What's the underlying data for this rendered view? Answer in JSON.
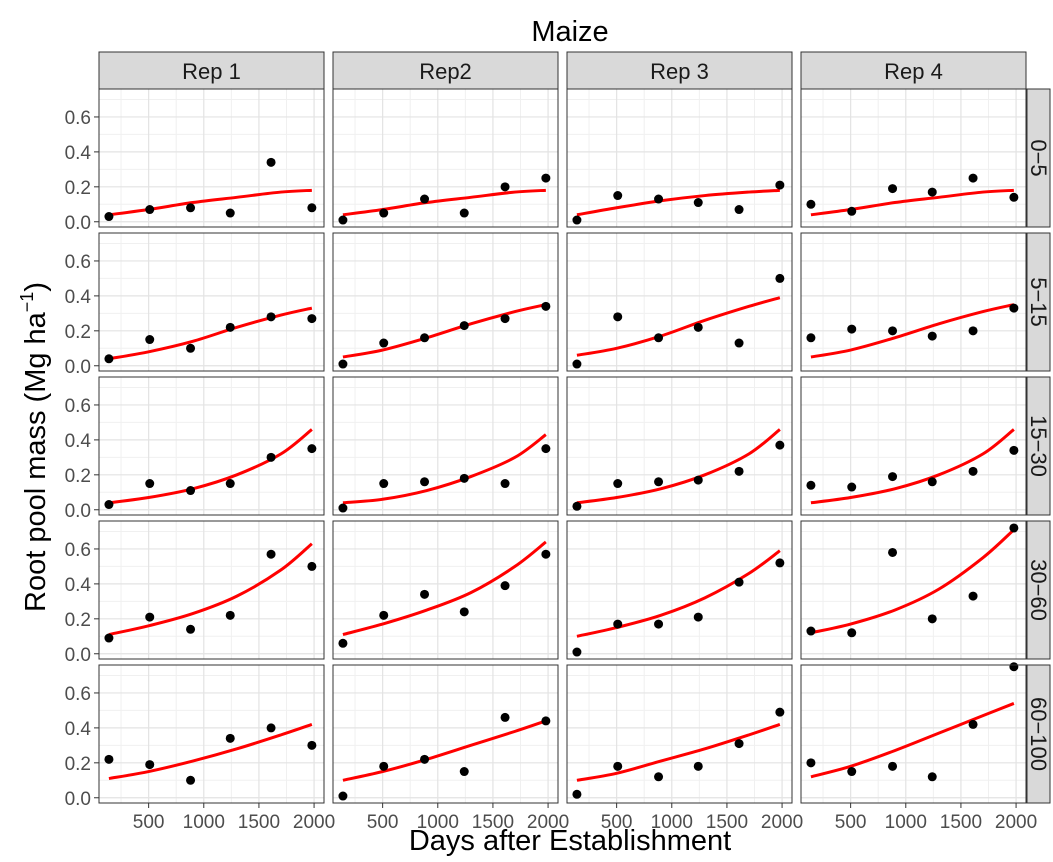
{
  "chart_data": {
    "type": "scatter",
    "title": "Maize",
    "xlabel": "Days after Establishment",
    "ylabel_main": "Root pool mass (Mg ha",
    "ylabel_sup": "−1",
    "ylabel_close": ")",
    "columns": [
      "Rep 1",
      "Rep2",
      "Rep 3",
      "Rep 4"
    ],
    "rows": [
      "0−5",
      "5−15",
      "15−30",
      "30−60",
      "60−100"
    ],
    "x_ticks": [
      500,
      1000,
      1500,
      2000
    ],
    "x_tick_labels": [
      "500",
      "1000",
      "1500",
      "2000"
    ],
    "xlim": [
      50,
      2090
    ],
    "y_ticks": [
      0.0,
      0.2,
      0.4,
      0.6
    ],
    "y_tick_labels": [
      "0.0",
      "0.2",
      "0.4",
      "0.6"
    ],
    "ylim": [
      -0.03,
      0.76
    ],
    "grid": true,
    "point_color": "#000000",
    "line_color": "#ff0000",
    "strip_color": "#d9d9d9",
    "x_days": [
      140,
      510,
      880,
      1240,
      1610,
      1980
    ],
    "points": [
      [
        [
          0.03,
          0.07,
          0.08,
          0.05,
          0.34,
          0.08
        ],
        [
          0.01,
          0.05,
          0.13,
          0.05,
          0.2,
          0.25
        ],
        [
          0.01,
          0.15,
          0.13,
          0.11,
          0.07,
          0.21
        ],
        [
          0.1,
          0.06,
          0.19,
          0.17,
          0.25,
          0.14
        ]
      ],
      [
        [
          0.04,
          0.15,
          0.1,
          0.22,
          0.28,
          0.27
        ],
        [
          0.01,
          0.13,
          0.16,
          0.23,
          0.27,
          0.34
        ],
        [
          0.01,
          0.28,
          0.16,
          0.22,
          0.13,
          0.5
        ],
        [
          0.16,
          0.21,
          0.2,
          0.17,
          0.2,
          0.33
        ]
      ],
      [
        [
          0.03,
          0.15,
          0.11,
          0.15,
          0.3,
          0.35
        ],
        [
          0.01,
          0.15,
          0.16,
          0.18,
          0.15,
          0.35
        ],
        [
          0.02,
          0.15,
          0.16,
          0.17,
          0.22,
          0.37
        ],
        [
          0.14,
          0.13,
          0.19,
          0.16,
          0.22,
          0.34
        ]
      ],
      [
        [
          0.09,
          0.21,
          0.14,
          0.22,
          0.57,
          0.5
        ],
        [
          0.06,
          0.22,
          0.34,
          0.24,
          0.39,
          0.57
        ],
        [
          0.01,
          0.17,
          0.17,
          0.21,
          0.41,
          0.52
        ],
        [
          0.13,
          0.12,
          0.58,
          0.2,
          0.33,
          0.72
        ]
      ],
      [
        [
          0.22,
          0.19,
          0.1,
          0.34,
          0.4,
          0.3
        ],
        [
          0.01,
          0.18,
          0.22,
          0.15,
          0.46,
          0.44
        ],
        [
          0.02,
          0.18,
          0.12,
          0.18,
          0.31,
          0.49
        ],
        [
          0.2,
          0.15,
          0.18,
          0.12,
          0.42,
          0.75
        ]
      ]
    ],
    "fit_x": [
      140,
      500,
      900,
      1300,
      1700,
      1980
    ],
    "fits": [
      [
        [
          0.04,
          0.07,
          0.11,
          0.14,
          0.17,
          0.18
        ],
        [
          0.04,
          0.07,
          0.11,
          0.14,
          0.17,
          0.18
        ],
        [
          0.04,
          0.08,
          0.12,
          0.15,
          0.17,
          0.18
        ],
        [
          0.04,
          0.07,
          0.11,
          0.14,
          0.17,
          0.18
        ]
      ],
      [
        [
          0.04,
          0.08,
          0.14,
          0.22,
          0.29,
          0.33
        ],
        [
          0.05,
          0.09,
          0.16,
          0.24,
          0.31,
          0.35
        ],
        [
          0.06,
          0.1,
          0.17,
          0.26,
          0.34,
          0.39
        ],
        [
          0.05,
          0.09,
          0.16,
          0.24,
          0.31,
          0.35
        ]
      ],
      [
        [
          0.04,
          0.07,
          0.12,
          0.2,
          0.32,
          0.46
        ],
        [
          0.04,
          0.06,
          0.11,
          0.19,
          0.3,
          0.43
        ],
        [
          0.04,
          0.07,
          0.12,
          0.2,
          0.32,
          0.46
        ],
        [
          0.04,
          0.07,
          0.12,
          0.2,
          0.32,
          0.46
        ]
      ],
      [
        [
          0.11,
          0.16,
          0.23,
          0.33,
          0.48,
          0.63
        ],
        [
          0.11,
          0.17,
          0.25,
          0.35,
          0.5,
          0.64
        ],
        [
          0.1,
          0.15,
          0.22,
          0.32,
          0.46,
          0.59
        ],
        [
          0.12,
          0.17,
          0.25,
          0.37,
          0.55,
          0.71
        ]
      ],
      [
        [
          0.11,
          0.15,
          0.21,
          0.28,
          0.36,
          0.42
        ],
        [
          0.1,
          0.15,
          0.22,
          0.3,
          0.38,
          0.44
        ],
        [
          0.1,
          0.14,
          0.21,
          0.28,
          0.36,
          0.42
        ],
        [
          0.12,
          0.18,
          0.27,
          0.37,
          0.47,
          0.54
        ]
      ]
    ]
  }
}
